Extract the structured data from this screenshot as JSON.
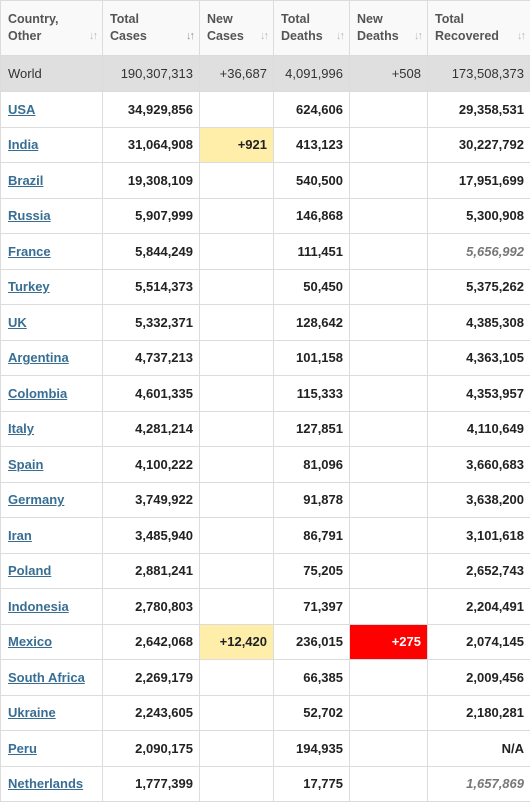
{
  "columns": [
    {
      "label": "Country,\nOther",
      "sort": "↓↑",
      "sort_active": false
    },
    {
      "label": "Total\nCases",
      "sort": "↓↑",
      "sort_active": true
    },
    {
      "label": "New\nCases",
      "sort": "↓↑",
      "sort_active": false
    },
    {
      "label": "Total\nDeaths",
      "sort": "↓↑",
      "sort_active": false
    },
    {
      "label": "New\nDeaths",
      "sort": "↓↑",
      "sort_active": false
    },
    {
      "label": "Total\nRecovered",
      "sort": "↓↑",
      "sort_active": false
    }
  ],
  "world": {
    "country": "World",
    "total_cases": "190,307,313",
    "new_cases": "+36,687",
    "total_deaths": "4,091,996",
    "new_deaths": "+508",
    "total_recovered": "173,508,373"
  },
  "rows": [
    {
      "country": "USA",
      "total_cases": "34,929,856",
      "new_cases": "",
      "total_deaths": "624,606",
      "new_deaths": "",
      "total_recovered": "29,358,531",
      "recovered_estimated": false
    },
    {
      "country": "India",
      "total_cases": "31,064,908",
      "new_cases": "+921",
      "total_deaths": "413,123",
      "new_deaths": "",
      "total_recovered": "30,227,792",
      "recovered_estimated": false
    },
    {
      "country": "Brazil",
      "total_cases": "19,308,109",
      "new_cases": "",
      "total_deaths": "540,500",
      "new_deaths": "",
      "total_recovered": "17,951,699",
      "recovered_estimated": false
    },
    {
      "country": "Russia",
      "total_cases": "5,907,999",
      "new_cases": "",
      "total_deaths": "146,868",
      "new_deaths": "",
      "total_recovered": "5,300,908",
      "recovered_estimated": false
    },
    {
      "country": "France",
      "total_cases": "5,844,249",
      "new_cases": "",
      "total_deaths": "111,451",
      "new_deaths": "",
      "total_recovered": "5,656,992",
      "recovered_estimated": true
    },
    {
      "country": "Turkey",
      "total_cases": "5,514,373",
      "new_cases": "",
      "total_deaths": "50,450",
      "new_deaths": "",
      "total_recovered": "5,375,262",
      "recovered_estimated": false
    },
    {
      "country": "UK",
      "total_cases": "5,332,371",
      "new_cases": "",
      "total_deaths": "128,642",
      "new_deaths": "",
      "total_recovered": "4,385,308",
      "recovered_estimated": false
    },
    {
      "country": "Argentina",
      "total_cases": "4,737,213",
      "new_cases": "",
      "total_deaths": "101,158",
      "new_deaths": "",
      "total_recovered": "4,363,105",
      "recovered_estimated": false
    },
    {
      "country": "Colombia",
      "total_cases": "4,601,335",
      "new_cases": "",
      "total_deaths": "115,333",
      "new_deaths": "",
      "total_recovered": "4,353,957",
      "recovered_estimated": false
    },
    {
      "country": "Italy",
      "total_cases": "4,281,214",
      "new_cases": "",
      "total_deaths": "127,851",
      "new_deaths": "",
      "total_recovered": "4,110,649",
      "recovered_estimated": false
    },
    {
      "country": "Spain",
      "total_cases": "4,100,222",
      "new_cases": "",
      "total_deaths": "81,096",
      "new_deaths": "",
      "total_recovered": "3,660,683",
      "recovered_estimated": false
    },
    {
      "country": "Germany",
      "total_cases": "3,749,922",
      "new_cases": "",
      "total_deaths": "91,878",
      "new_deaths": "",
      "total_recovered": "3,638,200",
      "recovered_estimated": false
    },
    {
      "country": "Iran",
      "total_cases": "3,485,940",
      "new_cases": "",
      "total_deaths": "86,791",
      "new_deaths": "",
      "total_recovered": "3,101,618",
      "recovered_estimated": false
    },
    {
      "country": "Poland",
      "total_cases": "2,881,241",
      "new_cases": "",
      "total_deaths": "75,205",
      "new_deaths": "",
      "total_recovered": "2,652,743",
      "recovered_estimated": false
    },
    {
      "country": "Indonesia",
      "total_cases": "2,780,803",
      "new_cases": "",
      "total_deaths": "71,397",
      "new_deaths": "",
      "total_recovered": "2,204,491",
      "recovered_estimated": false
    },
    {
      "country": "Mexico",
      "total_cases": "2,642,068",
      "new_cases": "+12,420",
      "total_deaths": "236,015",
      "new_deaths": "+275",
      "total_recovered": "2,074,145",
      "recovered_estimated": false
    },
    {
      "country": "South Africa",
      "total_cases": "2,269,179",
      "new_cases": "",
      "total_deaths": "66,385",
      "new_deaths": "",
      "total_recovered": "2,009,456",
      "recovered_estimated": false
    },
    {
      "country": "Ukraine",
      "total_cases": "2,243,605",
      "new_cases": "",
      "total_deaths": "52,702",
      "new_deaths": "",
      "total_recovered": "2,180,281",
      "recovered_estimated": false
    },
    {
      "country": "Peru",
      "total_cases": "2,090,175",
      "new_cases": "",
      "total_deaths": "194,935",
      "new_deaths": "",
      "total_recovered": "N/A",
      "recovered_estimated": false
    },
    {
      "country": "Netherlands",
      "total_cases": "1,777,399",
      "new_cases": "",
      "total_deaths": "17,775",
      "new_deaths": "",
      "total_recovered": "1,657,869",
      "recovered_estimated": true
    }
  ],
  "colors": {
    "new_cases_bg": "#ffeeaa",
    "new_deaths_bg": "#ff0000",
    "link": "#386e93",
    "world_bg": "#dfdfdf"
  }
}
